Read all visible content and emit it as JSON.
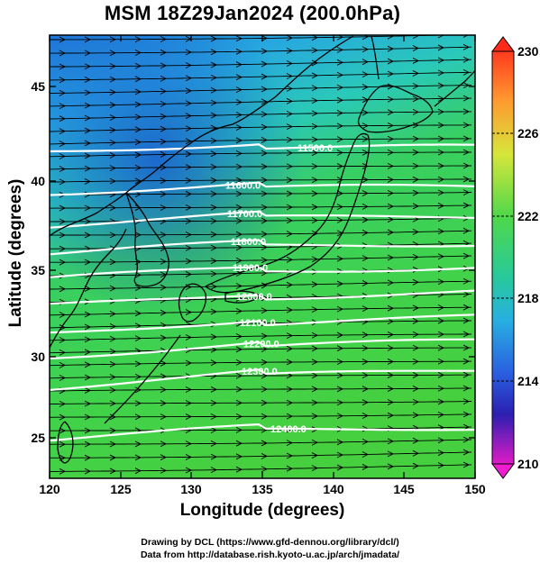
{
  "title": "MSM 18Z29Jan2024 (200.0hPa)",
  "x_axis_label": "Longitude (degrees)",
  "y_axis_label": "Latitude  (degrees)",
  "x_ticks": [
    "120",
    "125",
    "130",
    "135",
    "140",
    "145",
    "150"
  ],
  "y_ticks": [
    "25",
    "30",
    "35",
    "40",
    "45"
  ],
  "colorbar_ticks": [
    "230",
    "226",
    "222",
    "218",
    "214",
    "210"
  ],
  "credit_line1": "Drawing by DCL (https://www.gfd-dennou.org/library/dcl/)",
  "credit_line2": "Data from http://database.rish.kyoto-u.ac.jp/arch/jmadata/",
  "map": {
    "extent": {
      "lon": [
        120,
        150
      ],
      "lat": [
        22.4,
        47.6
      ]
    },
    "field": "temperature (colour shading) with geopotential height contours and wind vectors",
    "colorbar_range": [
      210,
      230
    ],
    "contour_labels": [
      "11500.0",
      "11600.0",
      "11700.0",
      "11800.0",
      "11900.0",
      "12000.0",
      "12100.0",
      "12200.0",
      "12300.0",
      "12400.0"
    ],
    "colors": {
      "cold": "#1e6fe0",
      "cool": "#22b8d8",
      "warm": "#3ad24a",
      "contour": "#ffffff",
      "coast": "#000000"
    }
  }
}
